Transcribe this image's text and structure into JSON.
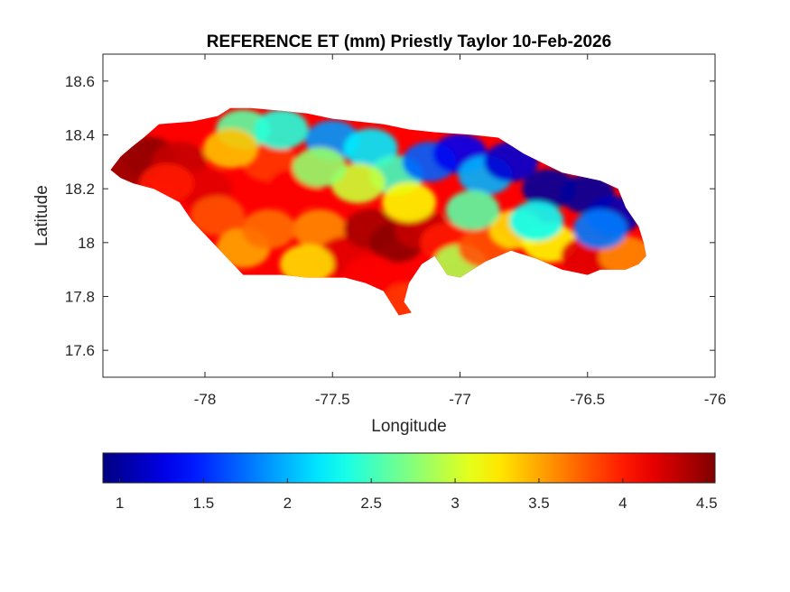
{
  "chart_data": {
    "type": "heatmap",
    "title": "REFERENCE ET (mm) Priestly Taylor 10-Feb-2026",
    "xlabel": "Longitude",
    "ylabel": "Latitude",
    "xlim": [
      -78.4,
      -76
    ],
    "ylim": [
      17.5,
      18.7
    ],
    "xticks": [
      -78,
      -77.5,
      -77,
      -76.5,
      -76
    ],
    "xtick_labels": [
      "-78",
      "-77.5",
      "-77",
      "-76.5",
      "-76"
    ],
    "yticks": [
      17.6,
      17.8,
      18,
      18.2,
      18.4,
      18.6
    ],
    "ytick_labels": [
      "17.6",
      "17.8",
      "18",
      "18.2",
      "18.4",
      "18.6"
    ],
    "colorbar": {
      "orientation": "horizontal",
      "location": "below",
      "colormap": "jet",
      "clim": [
        0.9,
        4.55
      ],
      "ticks": [
        1,
        1.5,
        2,
        2.5,
        3,
        3.5,
        4,
        4.5
      ],
      "tick_labels": [
        "1",
        "1.5",
        "2",
        "2.5",
        "3",
        "3.5",
        "4",
        "4.5"
      ]
    },
    "grid": false,
    "outline": [
      [
        -78.37,
        18.27
      ],
      [
        -78.33,
        18.32
      ],
      [
        -78.28,
        18.36
      ],
      [
        -78.24,
        18.39
      ],
      [
        -78.18,
        18.44
      ],
      [
        -78.05,
        18.45
      ],
      [
        -77.95,
        18.47
      ],
      [
        -77.9,
        18.5
      ],
      [
        -77.82,
        18.5
      ],
      [
        -77.7,
        18.49
      ],
      [
        -77.6,
        18.48
      ],
      [
        -77.5,
        18.46
      ],
      [
        -77.4,
        18.45
      ],
      [
        -77.3,
        18.44
      ],
      [
        -77.2,
        18.42
      ],
      [
        -77.1,
        18.41
      ],
      [
        -76.95,
        18.4
      ],
      [
        -76.85,
        18.39
      ],
      [
        -76.8,
        18.36
      ],
      [
        -76.75,
        18.33
      ],
      [
        -76.6,
        18.26
      ],
      [
        -76.45,
        18.23
      ],
      [
        -76.38,
        18.2
      ],
      [
        -76.35,
        18.13
      ],
      [
        -76.3,
        18.06
      ],
      [
        -76.28,
        18.0
      ],
      [
        -76.27,
        17.95
      ],
      [
        -76.3,
        17.92
      ],
      [
        -76.35,
        17.9
      ],
      [
        -76.45,
        17.9
      ],
      [
        -76.5,
        17.88
      ],
      [
        -76.6,
        17.9
      ],
      [
        -76.7,
        17.94
      ],
      [
        -76.8,
        17.97
      ],
      [
        -76.85,
        17.95
      ],
      [
        -76.9,
        17.93
      ],
      [
        -76.95,
        17.9
      ],
      [
        -77.0,
        17.87
      ],
      [
        -77.05,
        17.88
      ],
      [
        -77.1,
        17.95
      ],
      [
        -77.15,
        17.92
      ],
      [
        -77.2,
        17.85
      ],
      [
        -77.22,
        17.78
      ],
      [
        -77.19,
        17.74
      ],
      [
        -77.24,
        17.73
      ],
      [
        -77.3,
        17.82
      ],
      [
        -77.37,
        17.85
      ],
      [
        -77.45,
        17.87
      ],
      [
        -77.55,
        17.87
      ],
      [
        -77.6,
        17.87
      ],
      [
        -77.7,
        17.88
      ],
      [
        -77.8,
        17.88
      ],
      [
        -77.85,
        17.88
      ],
      [
        -77.92,
        17.95
      ],
      [
        -78.0,
        18.03
      ],
      [
        -78.05,
        18.08
      ],
      [
        -78.1,
        18.15
      ],
      [
        -78.2,
        18.2
      ],
      [
        -78.28,
        18.22
      ],
      [
        -78.33,
        18.24
      ]
    ],
    "field": [
      [
        -78.22,
        18.32,
        4.5
      ],
      [
        -78.3,
        18.28,
        4.45
      ],
      [
        -78.1,
        18.3,
        4.3
      ],
      [
        -78.0,
        18.2,
        4.2
      ],
      [
        -77.95,
        18.1,
        3.8
      ],
      [
        -77.85,
        17.98,
        3.5
      ],
      [
        -77.75,
        18.3,
        3.9
      ],
      [
        -77.65,
        18.2,
        4.1
      ],
      [
        -77.55,
        18.05,
        3.6
      ],
      [
        -77.45,
        17.95,
        4.2
      ],
      [
        -77.35,
        18.05,
        4.4
      ],
      [
        -77.25,
        18.0,
        4.5
      ],
      [
        -77.15,
        18.05,
        4.3
      ],
      [
        -77.05,
        18.0,
        4.0
      ],
      [
        -77.0,
        17.92,
        2.9
      ],
      [
        -76.9,
        17.98,
        3.8
      ],
      [
        -76.78,
        18.05,
        3.3
      ],
      [
        -76.65,
        18.0,
        3.2
      ],
      [
        -76.5,
        17.95,
        4.2
      ],
      [
        -76.35,
        17.95,
        3.6
      ],
      [
        -77.85,
        18.42,
        2.6
      ],
      [
        -77.7,
        18.42,
        2.4
      ],
      [
        -77.5,
        18.38,
        1.9
      ],
      [
        -77.35,
        18.35,
        2.2
      ],
      [
        -77.25,
        18.25,
        2.5
      ],
      [
        -77.12,
        18.3,
        1.7
      ],
      [
        -77.0,
        18.33,
        1.3
      ],
      [
        -76.9,
        18.25,
        2.0
      ],
      [
        -76.8,
        18.3,
        1.2
      ],
      [
        -76.65,
        18.2,
        1.0
      ],
      [
        -76.5,
        18.18,
        1.0
      ],
      [
        -76.4,
        18.1,
        1.1
      ],
      [
        -77.4,
        18.22,
        3.0
      ],
      [
        -77.55,
        18.28,
        2.8
      ],
      [
        -77.2,
        18.15,
        3.2
      ],
      [
        -76.95,
        18.12,
        2.6
      ],
      [
        -76.7,
        18.08,
        2.3
      ],
      [
        -76.45,
        18.05,
        1.8
      ],
      [
        -77.75,
        18.05,
        3.7
      ],
      [
        -77.6,
        17.92,
        3.3
      ],
      [
        -77.35,
        17.88,
        4.1
      ],
      [
        -77.2,
        17.78,
        3.9
      ],
      [
        -78.15,
        18.22,
        4.0
      ],
      [
        -77.9,
        18.35,
        3.4
      ]
    ]
  }
}
